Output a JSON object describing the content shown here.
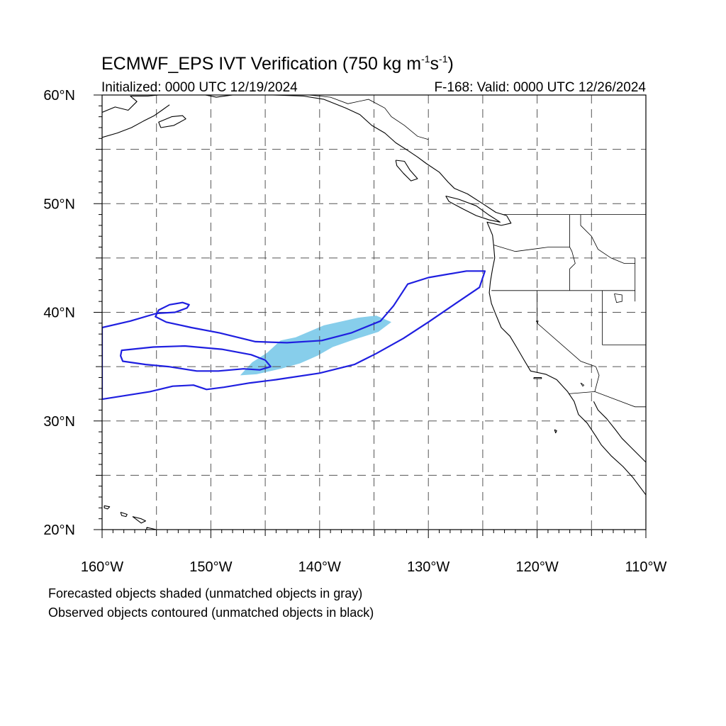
{
  "title": {
    "main_prefix": "ECMWF_EPS IVT Verification (750 kg m",
    "unit_exp_1": "-1",
    "unit_mid": "s",
    "unit_exp_2": "-1",
    "unit_close": ")"
  },
  "subtitle": {
    "initialized": "Initialized: 0000 UTC 12/19/2024",
    "valid": "F-168: Valid: 0000 UTC 12/26/2024"
  },
  "map": {
    "lon_range": [
      -160,
      -110
    ],
    "lat_range": [
      20,
      60
    ],
    "lon_ticks": [
      {
        "value": -160,
        "label": "160°W"
      },
      {
        "value": -150,
        "label": "150°W"
      },
      {
        "value": -140,
        "label": "140°W"
      },
      {
        "value": -130,
        "label": "130°W"
      },
      {
        "value": -120,
        "label": "120°W"
      },
      {
        "value": -110,
        "label": "110°W"
      }
    ],
    "lat_ticks": [
      {
        "value": 60,
        "label": "60°N"
      },
      {
        "value": 50,
        "label": "50°N"
      },
      {
        "value": 40,
        "label": "40°N"
      },
      {
        "value": 30,
        "label": "30°N"
      },
      {
        "value": 20,
        "label": "20°N"
      }
    ],
    "gridlines": {
      "lon_step": 5,
      "lat_step": 5,
      "style": "dashed"
    },
    "colors": {
      "forecast_fill": "#87ceeb",
      "observed_contour": "#1f1fe0",
      "coastline": "#000000",
      "grid": "#555555"
    },
    "forecast_object": {
      "label": "Forecasted object (matched)",
      "polygon": [
        [
          -147.3,
          34.2
        ],
        [
          -146.2,
          35.4
        ],
        [
          -144.8,
          36.3
        ],
        [
          -143.6,
          37.4
        ],
        [
          -142.2,
          37.7
        ],
        [
          -139.6,
          38.8
        ],
        [
          -136.5,
          39.5
        ],
        [
          -134.8,
          39.7
        ],
        [
          -133.4,
          39.1
        ],
        [
          -134.6,
          38.2
        ],
        [
          -136.8,
          37.5
        ],
        [
          -138.8,
          36.8
        ],
        [
          -140.2,
          36.0
        ],
        [
          -141.8,
          35.3
        ],
        [
          -143.6,
          34.8
        ],
        [
          -145.8,
          34.3
        ]
      ]
    },
    "observed_objects": [
      {
        "label": "Observed object (matched)",
        "polygon": [
          [
            -160,
            38.6
          ],
          [
            -157.4,
            39.2
          ],
          [
            -155.0,
            39.9
          ],
          [
            -153.3,
            40.0
          ],
          [
            -152.2,
            40.4
          ],
          [
            -152.0,
            40.7
          ],
          [
            -152.6,
            40.9
          ],
          [
            -153.8,
            40.7
          ],
          [
            -154.8,
            40.2
          ],
          [
            -155.1,
            39.6
          ],
          [
            -154.1,
            39.1
          ],
          [
            -151.8,
            38.6
          ],
          [
            -149.2,
            38.1
          ],
          [
            -145.9,
            37.3
          ],
          [
            -143.0,
            37.2
          ],
          [
            -139.8,
            37.4
          ],
          [
            -137.1,
            38.1
          ],
          [
            -134.4,
            39.2
          ],
          [
            -133.2,
            40.6
          ],
          [
            -131.9,
            42.6
          ],
          [
            -130.0,
            43.2
          ],
          [
            -126.5,
            43.8
          ],
          [
            -124.8,
            43.8
          ],
          [
            -125.3,
            42.3
          ],
          [
            -127.5,
            40.8
          ],
          [
            -130.0,
            39.1
          ],
          [
            -132.3,
            37.6
          ],
          [
            -134.8,
            36.2
          ],
          [
            -136.8,
            35.2
          ],
          [
            -140.0,
            34.4
          ],
          [
            -144.0,
            33.8
          ],
          [
            -146.4,
            33.5
          ],
          [
            -148.8,
            33.1
          ],
          [
            -150.4,
            32.9
          ],
          [
            -151.6,
            33.3
          ],
          [
            -153.5,
            33.2
          ],
          [
            -155.6,
            32.7
          ],
          [
            -160.0,
            32.0
          ]
        ]
      },
      {
        "label": "Observed object (matched)",
        "polygon": [
          [
            -158.2,
            36.5
          ],
          [
            -155.3,
            36.8
          ],
          [
            -152.4,
            36.9
          ],
          [
            -149.0,
            36.6
          ],
          [
            -146.3,
            36.1
          ],
          [
            -145.0,
            35.6
          ],
          [
            -144.5,
            35.0
          ],
          [
            -145.5,
            34.7
          ],
          [
            -147.0,
            34.8
          ],
          [
            -149.3,
            34.6
          ],
          [
            -151.3,
            34.6
          ],
          [
            -153.9,
            35.0
          ],
          [
            -156.0,
            35.2
          ],
          [
            -158.1,
            35.5
          ],
          [
            -158.3,
            36.0
          ]
        ]
      }
    ],
    "coastlines": [
      {
        "name": "alaska-southcoast",
        "points": [
          [
            -160,
            58.4
          ],
          [
            -158.8,
            58.9
          ],
          [
            -157.6,
            58.6
          ],
          [
            -156.8,
            59.4
          ],
          [
            -157.4,
            59.9
          ],
          [
            -155.8,
            59.9
          ],
          [
            -154.8,
            60
          ]
        ]
      },
      {
        "name": "alaska-peninsula",
        "points": [
          [
            -160,
            56.1
          ],
          [
            -158.6,
            56.5
          ],
          [
            -157.3,
            57.0
          ],
          [
            -156.2,
            57.6
          ],
          [
            -155.2,
            58.1
          ],
          [
            -154.5,
            58.6
          ],
          [
            -153.8,
            59.1
          ]
        ]
      },
      {
        "name": "kodiak",
        "points": [
          [
            -154.6,
            57.0
          ],
          [
            -153.4,
            57.2
          ],
          [
            -152.3,
            57.8
          ],
          [
            -152.6,
            58.1
          ],
          [
            -153.6,
            58.0
          ],
          [
            -154.8,
            57.5
          ],
          [
            -154.6,
            57.0
          ]
        ]
      },
      {
        "name": "gulf-alaska-coast",
        "points": [
          [
            -150.5,
            60
          ],
          [
            -149.5,
            59.8
          ],
          [
            -148.0,
            60
          ],
          [
            -146.0,
            60
          ],
          [
            -144.3,
            60
          ],
          [
            -141.5,
            59.9
          ],
          [
            -139.6,
            59.6
          ],
          [
            -137.6,
            58.8
          ],
          [
            -136.3,
            58.2
          ],
          [
            -135.2,
            57.2
          ],
          [
            -134.0,
            56.5
          ],
          [
            -133.0,
            55.6
          ],
          [
            -131.9,
            54.9
          ],
          [
            -131.0,
            54.3
          ],
          [
            -130.2,
            53.7
          ],
          [
            -129.0,
            52.9
          ],
          [
            -128.2,
            52.0
          ],
          [
            -127.6,
            51.4
          ],
          [
            -126.4,
            50.9
          ],
          [
            -125.0,
            50.0
          ],
          [
            -123.8,
            49.2
          ],
          [
            -122.8,
            48.9
          ],
          [
            -122.4,
            48.2
          ],
          [
            -123.3,
            48.0
          ],
          [
            -124.6,
            48.3
          ],
          [
            -124.1,
            47.1
          ],
          [
            -124.0,
            46.2
          ],
          [
            -123.9,
            45.0
          ],
          [
            -124.1,
            44.0
          ],
          [
            -124.3,
            42.8
          ],
          [
            -124.4,
            41.8
          ],
          [
            -124.2,
            40.8
          ],
          [
            -123.8,
            39.8
          ],
          [
            -123.3,
            38.6
          ],
          [
            -122.5,
            37.8
          ],
          [
            -121.9,
            36.8
          ],
          [
            -121.2,
            35.6
          ],
          [
            -120.6,
            34.6
          ],
          [
            -119.2,
            34.3
          ],
          [
            -118.2,
            33.8
          ],
          [
            -117.2,
            32.7
          ],
          [
            -116.6,
            31.8
          ],
          [
            -116.2,
            30.6
          ],
          [
            -115.4,
            29.8
          ],
          [
            -114.6,
            28.6
          ],
          [
            -114.1,
            27.8
          ],
          [
            -113.2,
            26.8
          ],
          [
            -112.1,
            25.8
          ],
          [
            -111.2,
            24.8
          ],
          [
            -110.3,
            23.6
          ],
          [
            -110,
            23.2
          ]
        ]
      },
      {
        "name": "haida-gwaii",
        "points": [
          [
            -133.0,
            54.0
          ],
          [
            -132.2,
            53.9
          ],
          [
            -131.7,
            53.1
          ],
          [
            -131.0,
            52.3
          ],
          [
            -131.6,
            52.1
          ],
          [
            -132.3,
            52.8
          ],
          [
            -132.9,
            53.5
          ],
          [
            -133.0,
            54.0
          ]
        ]
      },
      {
        "name": "vancouver-island",
        "points": [
          [
            -128.4,
            50.7
          ],
          [
            -127.2,
            50.4
          ],
          [
            -125.6,
            49.8
          ],
          [
            -124.5,
            49.0
          ],
          [
            -123.4,
            48.3
          ],
          [
            -124.4,
            48.5
          ],
          [
            -125.6,
            48.9
          ],
          [
            -126.8,
            49.5
          ],
          [
            -128.1,
            50.2
          ],
          [
            -128.4,
            50.7
          ]
        ]
      },
      {
        "name": "baja-gulf-east",
        "points": [
          [
            -114.8,
            31.8
          ],
          [
            -114.4,
            31.0
          ],
          [
            -113.6,
            30.2
          ],
          [
            -112.8,
            29.2
          ],
          [
            -112.2,
            28.4
          ],
          [
            -111.2,
            27.4
          ],
          [
            -110.4,
            26.6
          ],
          [
            -110,
            26.2
          ]
        ]
      },
      {
        "name": "channel-islands",
        "points": [
          [
            -120.3,
            34.0
          ],
          [
            -119.6,
            34.0
          ],
          [
            -119.6,
            33.9
          ],
          [
            -120.3,
            33.9
          ],
          [
            -120.3,
            34.0
          ]
        ]
      },
      {
        "name": "guadalupe-island",
        "points": [
          [
            -118.4,
            29.2
          ],
          [
            -118.2,
            29.1
          ],
          [
            -118.3,
            28.9
          ],
          [
            -118.4,
            29.2
          ]
        ]
      },
      {
        "name": "hawaii-kauai",
        "points": [
          [
            -159.8,
            22.2
          ],
          [
            -159.3,
            22.1
          ],
          [
            -159.5,
            21.9
          ],
          [
            -159.8,
            22.0
          ],
          [
            -159.8,
            22.2
          ]
        ]
      },
      {
        "name": "hawaii-oahu",
        "points": [
          [
            -158.3,
            21.6
          ],
          [
            -157.7,
            21.4
          ],
          [
            -157.8,
            21.2
          ],
          [
            -158.2,
            21.3
          ],
          [
            -158.3,
            21.6
          ]
        ]
      },
      {
        "name": "hawaii-molokai-maui",
        "points": [
          [
            -157.2,
            21.2
          ],
          [
            -156.4,
            21.0
          ],
          [
            -156.0,
            20.8
          ],
          [
            -156.4,
            20.6
          ],
          [
            -156.8,
            20.9
          ],
          [
            -157.2,
            21.2
          ]
        ]
      },
      {
        "name": "hawaii-big-island",
        "points": [
          [
            -155.9,
            20.2
          ],
          [
            -155.0,
            20.0
          ],
          [
            -154.8,
            19.6
          ],
          [
            -155.4,
            19.0
          ],
          [
            -155.9,
            19.6
          ],
          [
            -155.9,
            20.2
          ]
        ]
      }
    ],
    "borders": [
      {
        "name": "ak-bc-border",
        "points": [
          [
            -141.0,
            60
          ],
          [
            -139.0,
            59.8
          ],
          [
            -137.4,
            59.2
          ],
          [
            -135.5,
            59.6
          ],
          [
            -134.0,
            58.8
          ],
          [
            -133.4,
            58.0
          ],
          [
            -132.2,
            57.2
          ],
          [
            -131.0,
            56.2
          ],
          [
            -130.0,
            55.9
          ]
        ]
      },
      {
        "name": "us-canada-border",
        "points": [
          [
            -123.2,
            49.0
          ],
          [
            -110,
            49.0
          ]
        ]
      },
      {
        "name": "wa-or",
        "points": [
          [
            -124.0,
            46.2
          ],
          [
            -122.0,
            45.6
          ],
          [
            -119.0,
            46.0
          ],
          [
            -117.0,
            46.0
          ]
        ]
      },
      {
        "name": "id-west",
        "points": [
          [
            -117.0,
            49.0
          ],
          [
            -117.0,
            46.0
          ],
          [
            -116.8,
            45.6
          ],
          [
            -116.5,
            44.5
          ],
          [
            -117.0,
            44.0
          ],
          [
            -117.0,
            42.0
          ]
        ]
      },
      {
        "name": "idaho-mt",
        "points": [
          [
            -116.0,
            49.0
          ],
          [
            -116.0,
            48.0
          ],
          [
            -115.0,
            47.0
          ],
          [
            -114.4,
            45.8
          ],
          [
            -113.2,
            45.0
          ],
          [
            -112.0,
            44.5
          ],
          [
            -111.0,
            44.5
          ]
        ]
      },
      {
        "name": "wy-west",
        "points": [
          [
            -111.0,
            45.0
          ],
          [
            -111.0,
            41.0
          ]
        ]
      },
      {
        "name": "or-ca-nv-id",
        "points": [
          [
            -124.2,
            42.0
          ],
          [
            -111.0,
            42.0
          ]
        ]
      },
      {
        "name": "ca-nv",
        "points": [
          [
            -120.0,
            42.0
          ],
          [
            -120.0,
            39.0
          ],
          [
            -116.0,
            35.5
          ],
          [
            -114.6,
            35.0
          ]
        ]
      },
      {
        "name": "nv-ut",
        "points": [
          [
            -114.0,
            42.0
          ],
          [
            -114.0,
            37.0
          ]
        ]
      },
      {
        "name": "az-ut",
        "points": [
          [
            -114.0,
            37.0
          ],
          [
            -110,
            37.0
          ]
        ]
      },
      {
        "name": "az-ca",
        "points": [
          [
            -114.6,
            35.0
          ],
          [
            -114.3,
            34.2
          ],
          [
            -114.7,
            32.7
          ]
        ]
      },
      {
        "name": "us-mexico",
        "points": [
          [
            -117.1,
            32.5
          ],
          [
            -114.7,
            32.7
          ],
          [
            -111.0,
            31.3
          ],
          [
            -110,
            31.3
          ]
        ]
      }
    ],
    "lakes": [
      {
        "name": "great-salt-lake",
        "points": [
          [
            -112.9,
            41.7
          ],
          [
            -112.2,
            41.6
          ],
          [
            -112.2,
            41.0
          ],
          [
            -112.7,
            40.9
          ],
          [
            -112.9,
            41.7
          ]
        ]
      },
      {
        "name": "lake-tahoe",
        "points": [
          [
            -120.1,
            39.2
          ],
          [
            -119.9,
            39.2
          ],
          [
            -119.95,
            39.05
          ],
          [
            -120.1,
            39.2
          ]
        ]
      },
      {
        "name": "salton-sea",
        "points": [
          [
            -116.0,
            33.5
          ],
          [
            -115.7,
            33.3
          ],
          [
            -115.8,
            33.2
          ],
          [
            -116.0,
            33.5
          ]
        ]
      }
    ]
  },
  "footer": {
    "line1": "Forecasted objects shaded (unmatched objects in gray)",
    "line2": "Observed objects contoured (unmatched objects in black)"
  }
}
